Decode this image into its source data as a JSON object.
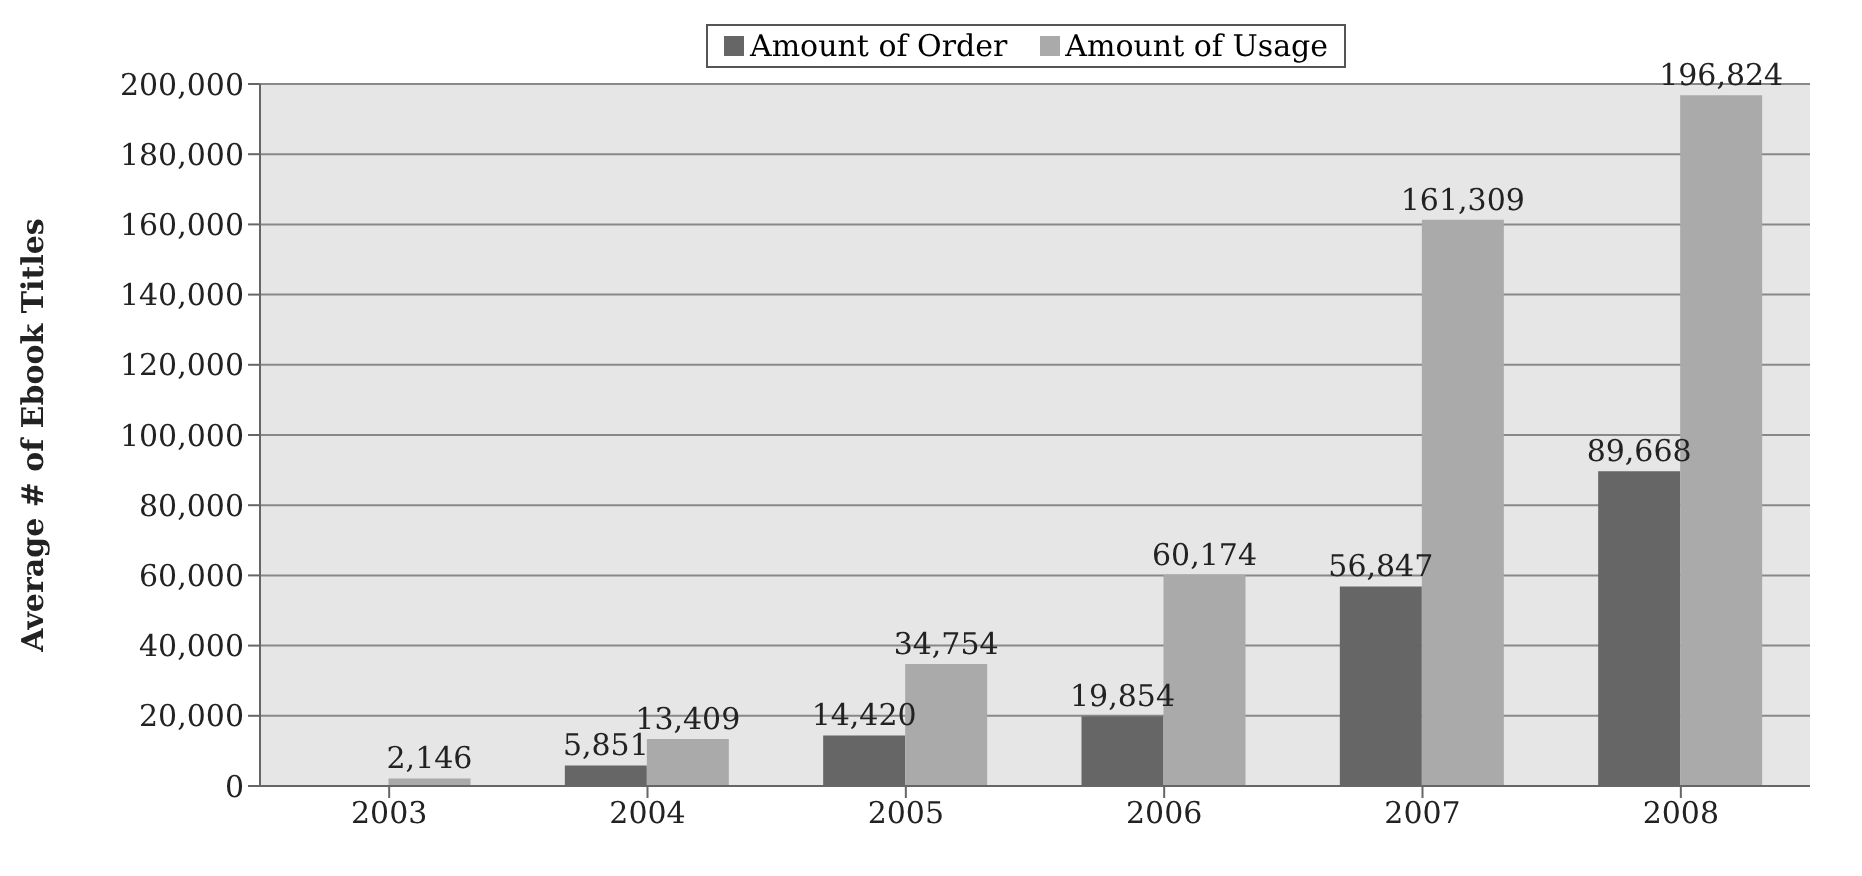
{
  "chart_data": {
    "type": "bar",
    "ylabel": "Average # of Ebook Titles",
    "categories": [
      "2003",
      "2004",
      "2005",
      "2006",
      "2007",
      "2008"
    ],
    "series": [
      {
        "name": "Amount of Order",
        "color": "#666666",
        "values": [
          null,
          5851,
          14420,
          19854,
          56847,
          89668
        ],
        "value_labels": [
          null,
          "5,851",
          "14,420",
          "19,854",
          "56,847",
          "89,668"
        ]
      },
      {
        "name": "Amount of Usage",
        "color": "#aaaaaa",
        "values": [
          2146,
          13409,
          34754,
          60174,
          161309,
          196824
        ],
        "value_labels": [
          "2,146",
          "13,409",
          "34,754",
          "60,174",
          "161,309",
          "196,824"
        ]
      }
    ],
    "ylim": [
      0,
      200000
    ],
    "yticks": [
      {
        "value": 0,
        "label": "0"
      },
      {
        "value": 20000,
        "label": "20,000"
      },
      {
        "value": 40000,
        "label": "40,000"
      },
      {
        "value": 60000,
        "label": "60,000"
      },
      {
        "value": 80000,
        "label": "80,000"
      },
      {
        "value": 100000,
        "label": "100,000"
      },
      {
        "value": 120000,
        "label": "120,000"
      },
      {
        "value": 140000,
        "label": "140,000"
      },
      {
        "value": 160000,
        "label": "160,000"
      },
      {
        "value": 180000,
        "label": "180,000"
      },
      {
        "value": 200000,
        "label": "200,000"
      }
    ],
    "grid": "y",
    "legend": "top"
  }
}
